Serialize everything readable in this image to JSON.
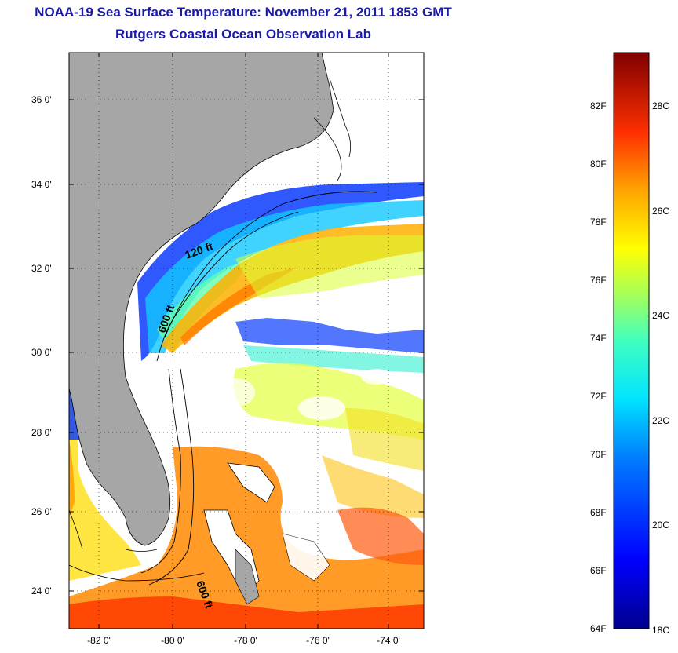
{
  "title": "NOAA-19 Sea Surface Temperature:  November 21, 2011 1853 GMT",
  "subtitle": "Rutgers Coastal Ocean Observation Lab",
  "map": {
    "lat_ticks": [
      "36 0'",
      "34 0'",
      "32 0'",
      "30 0'",
      "28 0'",
      "26 0'",
      "24 0'"
    ],
    "lon_ticks": [
      "-82 0'",
      "-80 0'",
      "-78 0'",
      "-76 0'",
      "-74 0'"
    ],
    "contour_labels": [
      "120 ft",
      "600 ft",
      "600 ft"
    ]
  },
  "colorbar": {
    "fahrenheit": [
      "82F",
      "80F",
      "78F",
      "76F",
      "74F",
      "72F",
      "70F",
      "68F",
      "66F",
      "64F"
    ],
    "celsius": [
      "28C",
      "26C",
      "24C",
      "22C",
      "20C",
      "18C"
    ]
  },
  "colors": {
    "land": "#a6a6a6",
    "title": "#1a1aa8"
  }
}
